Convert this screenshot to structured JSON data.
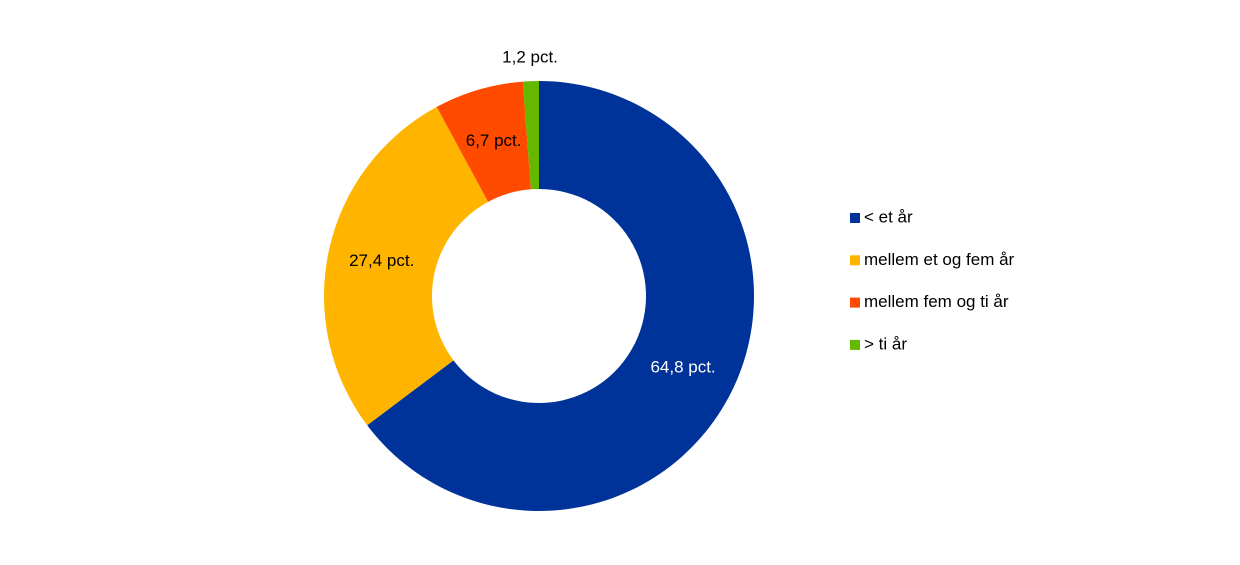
{
  "chart_data": {
    "type": "donut",
    "series": [
      {
        "name": "< et år",
        "color": "#003399",
        "values": [
          64.8
        ],
        "value_labels": [
          "64,8 pct."
        ]
      },
      {
        "name": "mellem et og fem år",
        "color": "#ffb400",
        "values": [
          27.4
        ],
        "value_labels": [
          "27,4 pct."
        ]
      },
      {
        "name": "mellem fem og ti år",
        "color": "#ff4b00",
        "values": [
          6.7
        ],
        "value_labels": [
          "6,7 pct."
        ]
      },
      {
        "name": "> ti år",
        "color": "#65b800",
        "values": [
          1.2
        ],
        "value_labels": [
          "1,2 pct."
        ]
      }
    ],
    "legend": "right"
  }
}
